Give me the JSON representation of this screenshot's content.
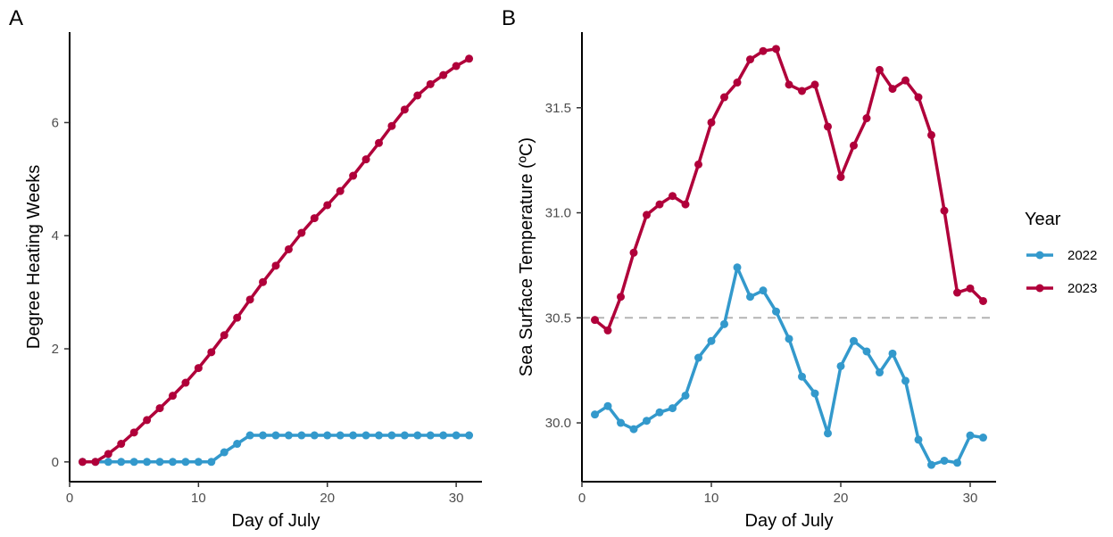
{
  "chart_data": [
    {
      "type": "line",
      "panel_label": "A",
      "xlabel": "Day of July",
      "ylabel": "Degree Heating Weeks",
      "xlim": [
        0,
        32
      ],
      "ylim": [
        -0.35,
        7.6
      ],
      "xticks": [
        0,
        10,
        20,
        30
      ],
      "yticks": [
        0,
        2,
        4,
        6
      ],
      "grid": false,
      "series": [
        {
          "name": "2022",
          "color": "#3399cc",
          "x": [
            1,
            2,
            3,
            4,
            5,
            6,
            7,
            8,
            9,
            10,
            11,
            12,
            13,
            14,
            15,
            16,
            17,
            18,
            19,
            20,
            21,
            22,
            23,
            24,
            25,
            26,
            27,
            28,
            29,
            30,
            31
          ],
          "y": [
            0,
            0,
            0,
            0,
            0,
            0,
            0,
            0,
            0,
            0,
            0,
            0.17,
            0.32,
            0.47,
            0.47,
            0.47,
            0.47,
            0.47,
            0.47,
            0.47,
            0.47,
            0.47,
            0.47,
            0.47,
            0.47,
            0.47,
            0.47,
            0.47,
            0.47,
            0.47,
            0.47
          ]
        },
        {
          "name": "2023",
          "color": "#b0003a",
          "x": [
            1,
            2,
            3,
            4,
            5,
            6,
            7,
            8,
            9,
            10,
            11,
            12,
            13,
            14,
            15,
            16,
            17,
            18,
            19,
            20,
            21,
            22,
            23,
            24,
            25,
            26,
            27,
            28,
            29,
            30,
            31
          ],
          "y": [
            0,
            0,
            0.14,
            0.32,
            0.52,
            0.74,
            0.95,
            1.17,
            1.4,
            1.66,
            1.94,
            2.24,
            2.55,
            2.87,
            3.18,
            3.47,
            3.76,
            4.05,
            4.31,
            4.54,
            4.79,
            5.06,
            5.35,
            5.64,
            5.94,
            6.23,
            6.48,
            6.68,
            6.84,
            7.0,
            7.13
          ]
        }
      ]
    },
    {
      "type": "line",
      "panel_label": "B",
      "xlabel": "Day of July",
      "ylabel": "Sea Surface Temperature (ºC)",
      "xlim": [
        0,
        32
      ],
      "ylim": [
        29.72,
        31.86
      ],
      "xticks": [
        0,
        10,
        20,
        30
      ],
      "yticks": [
        30.0,
        30.5,
        31.0,
        31.5
      ],
      "ytick_labels": [
        "30.0",
        "30.5",
        "31.0",
        "31.5"
      ],
      "grid": false,
      "reference_line": {
        "y": 30.5,
        "style": "dashed",
        "color": "#b3b3b3"
      },
      "series": [
        {
          "name": "2022",
          "color": "#3399cc",
          "x": [
            1,
            2,
            3,
            4,
            5,
            6,
            7,
            8,
            9,
            10,
            11,
            12,
            13,
            14,
            15,
            16,
            17,
            18,
            19,
            20,
            21,
            22,
            23,
            24,
            25,
            26,
            27,
            28,
            29,
            30,
            31
          ],
          "y": [
            30.04,
            30.08,
            30.0,
            29.97,
            30.01,
            30.05,
            30.07,
            30.13,
            30.31,
            30.39,
            30.47,
            30.74,
            30.6,
            30.63,
            30.53,
            30.4,
            30.22,
            30.14,
            29.95,
            30.27,
            30.39,
            30.34,
            30.24,
            30.33,
            30.2,
            29.92,
            29.8,
            29.82,
            29.81,
            29.94,
            29.93
          ]
        },
        {
          "name": "2023",
          "color": "#b0003a",
          "x": [
            1,
            2,
            3,
            4,
            5,
            6,
            7,
            8,
            9,
            10,
            11,
            12,
            13,
            14,
            15,
            16,
            17,
            18,
            19,
            20,
            21,
            22,
            23,
            24,
            25,
            26,
            27,
            28,
            29,
            30,
            31
          ],
          "y": [
            30.49,
            30.44,
            30.6,
            30.81,
            30.99,
            31.04,
            31.08,
            31.04,
            31.23,
            31.43,
            31.55,
            31.62,
            31.73,
            31.77,
            31.78,
            31.61,
            31.58,
            31.61,
            31.41,
            31.17,
            31.32,
            31.45,
            31.68,
            31.59,
            31.63,
            31.55,
            31.37,
            31.01,
            30.62,
            30.64,
            30.58
          ]
        }
      ]
    }
  ],
  "legend": {
    "title": "Year",
    "placement": "right",
    "items": [
      {
        "label": "2022",
        "color": "#3399cc"
      },
      {
        "label": "2023",
        "color": "#b0003a"
      }
    ]
  }
}
